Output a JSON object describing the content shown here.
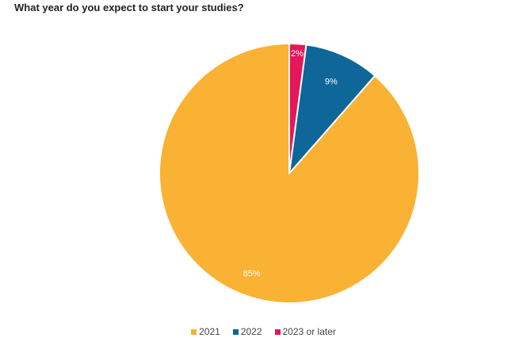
{
  "chart_data": {
    "type": "pie",
    "title": "What year do you expect to start your studies?",
    "categories": [
      "2021",
      "2022",
      "2023 or later"
    ],
    "values": [
      85,
      9,
      2
    ],
    "labels": [
      "85%",
      "9%",
      "2%"
    ],
    "colors": [
      "#F9B233",
      "#0E6699",
      "#E4175A"
    ],
    "legend_position": "bottom"
  }
}
